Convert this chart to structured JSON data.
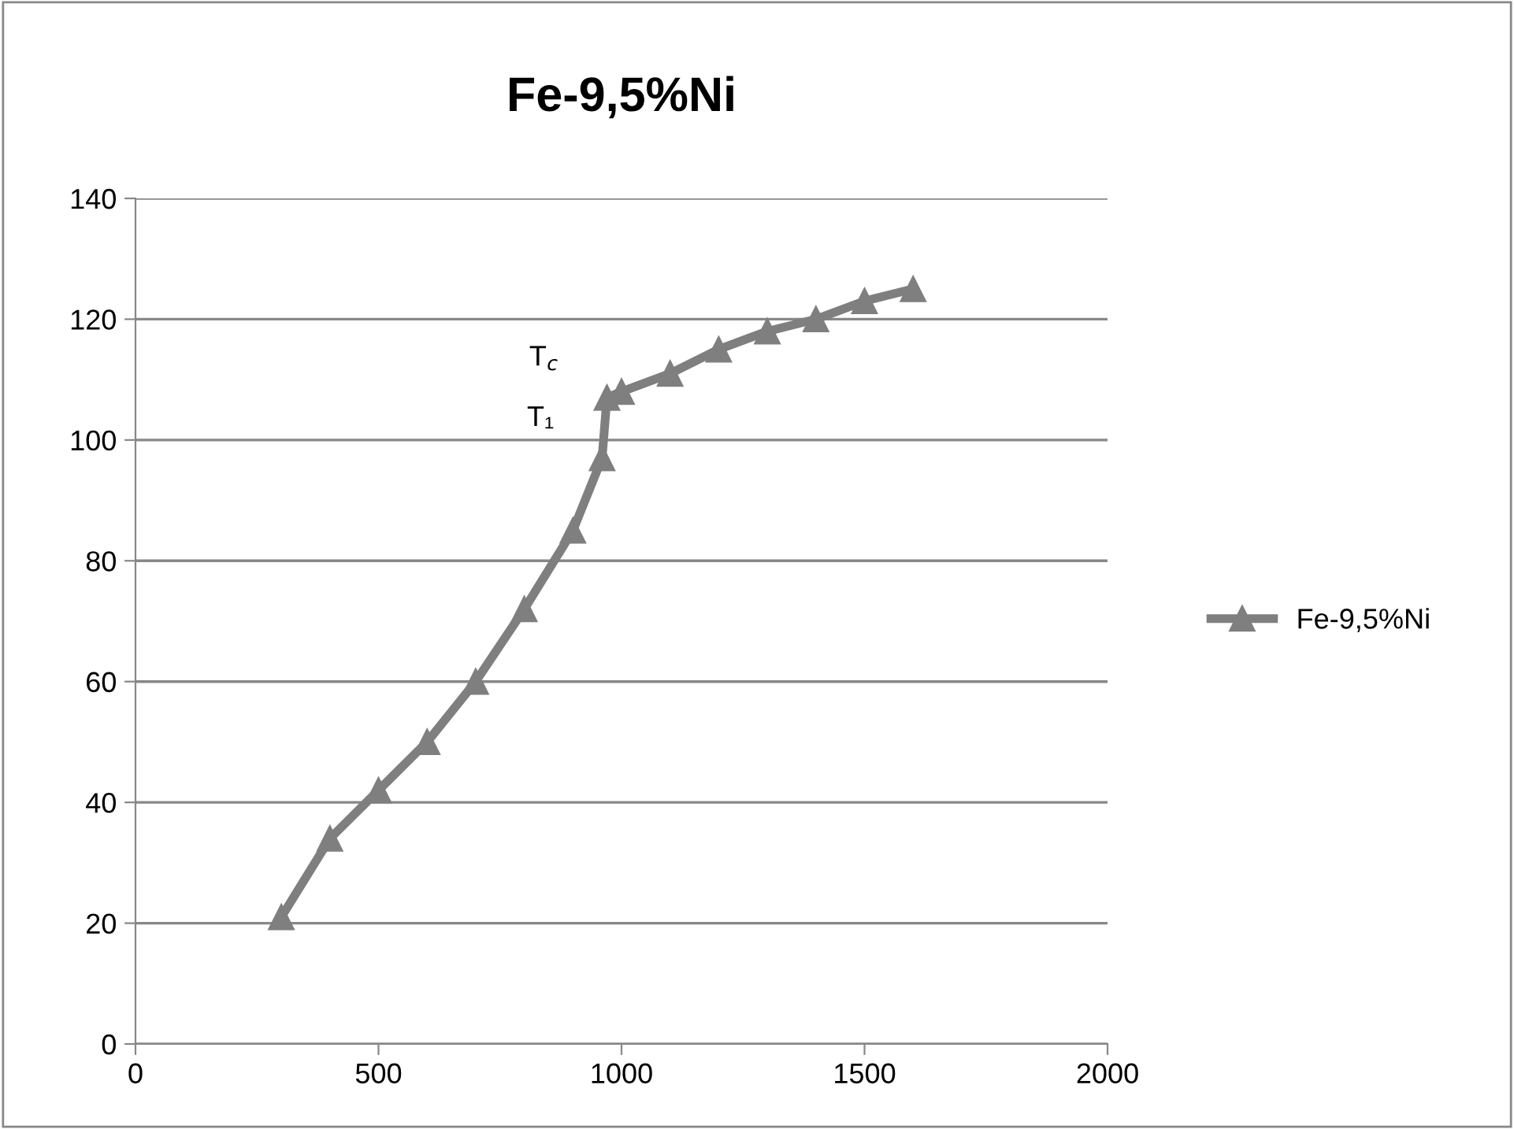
{
  "chart_data": {
    "type": "line",
    "title": "Fe-9,5%Ni",
    "x": [
      300,
      400,
      500,
      600,
      700,
      800,
      900,
      960,
      970,
      1000,
      1100,
      1200,
      1300,
      1400,
      1500,
      1600
    ],
    "series": [
      {
        "name": "Fe-9,5%Ni",
        "color": "#7f7f7f",
        "values": [
          21,
          34,
          42,
          50,
          60,
          72,
          85,
          97,
          107,
          108,
          111,
          115,
          118,
          120,
          123,
          125
        ]
      }
    ],
    "annotations": [
      {
        "text": "T₁",
        "x": 960,
        "y": 97
      },
      {
        "text": "T$_{c}$",
        "x": 970,
        "y": 107
      }
    ],
    "xlim": [
      0,
      2000
    ],
    "xticks": [
      0,
      500,
      1000,
      1500,
      2000
    ],
    "ylim": [
      0,
      140
    ],
    "yticks": [
      0,
      20,
      40,
      60,
      80,
      100,
      120,
      140
    ],
    "grid": "y",
    "legend": "right",
    "marker": "triangle",
    "line_style": "solid"
  }
}
